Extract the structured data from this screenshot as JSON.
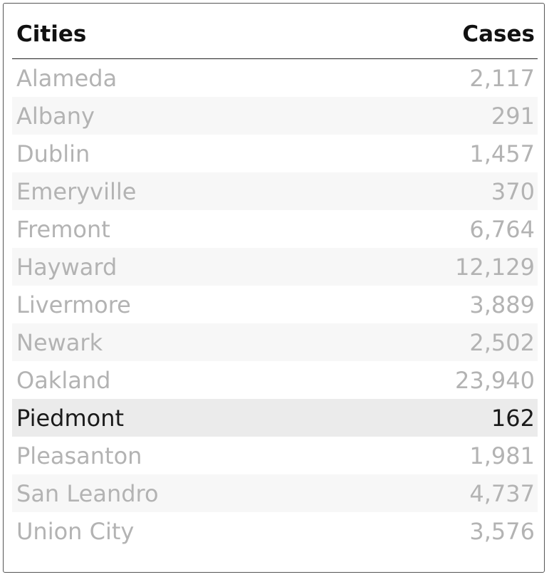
{
  "table": {
    "columns": {
      "city": "Cities",
      "cases": "Cases"
    },
    "rows": [
      {
        "city": "Alameda",
        "cases": "2,117"
      },
      {
        "city": "Albany",
        "cases": "291"
      },
      {
        "city": "Dublin",
        "cases": "1,457"
      },
      {
        "city": "Emeryville",
        "cases": "370"
      },
      {
        "city": "Fremont",
        "cases": "6,764"
      },
      {
        "city": "Hayward",
        "cases": "12,129"
      },
      {
        "city": "Livermore",
        "cases": "3,889"
      },
      {
        "city": "Newark",
        "cases": "2,502"
      },
      {
        "city": "Oakland",
        "cases": "23,940"
      },
      {
        "city": "Piedmont",
        "cases": "162"
      },
      {
        "city": "Pleasanton",
        "cases": "1,981"
      },
      {
        "city": "San Leandro",
        "cases": "4,737"
      },
      {
        "city": "Union City",
        "cases": "3,576"
      }
    ],
    "selected_city": "Piedmont"
  },
  "colors": {
    "text_dim": "#b3b3b3",
    "text_active": "#1a1a1a",
    "selected_bg": "#ebebeb",
    "alt_row_bg": "#f7f7f7"
  }
}
